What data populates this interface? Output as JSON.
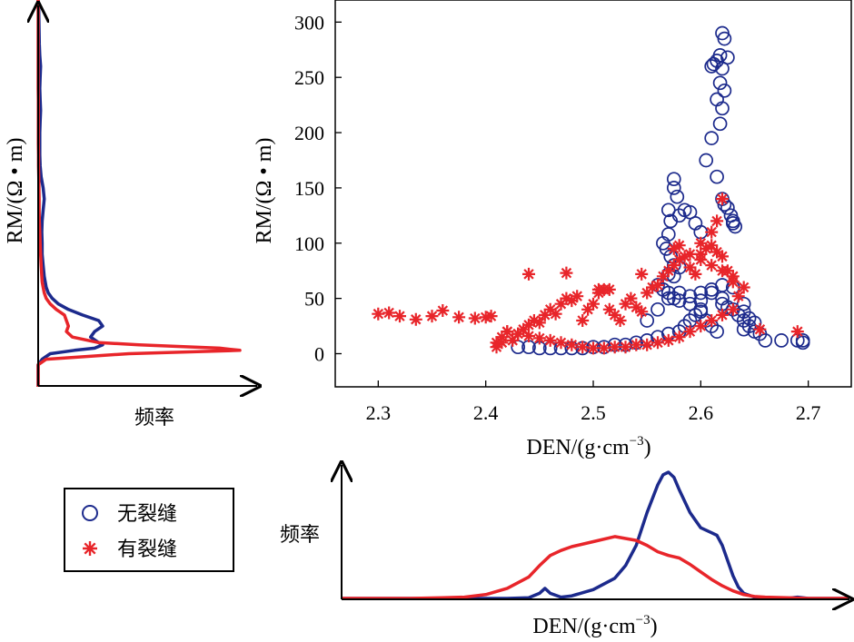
{
  "chart_data": [
    {
      "type": "scatter",
      "xlabel": "DEN/(g·cm",
      "xlabel_sup": "−3",
      "xlabel_close": ")",
      "ylabel": "RM/(Ω • m)",
      "xlim": [
        2.26,
        2.74
      ],
      "ylim": [
        -30,
        320
      ],
      "xticks": [
        "2.3",
        "2.4",
        "2.5",
        "2.6",
        "2.7"
      ],
      "yticks": [
        "0",
        "50",
        "100",
        "150",
        "200",
        "250",
        "300"
      ],
      "grid": false,
      "series": [
        {
          "name": "无裂缝",
          "marker": "circle",
          "color": "#1c2a8c",
          "x": [
            2.62,
            2.622,
            2.618,
            2.615,
            2.61,
            2.612,
            2.62,
            2.625,
            2.618,
            2.615,
            2.622,
            2.62,
            2.618,
            2.61,
            2.605,
            2.615,
            2.62,
            2.622,
            2.625,
            2.628,
            2.63,
            2.63,
            2.632,
            2.575,
            2.575,
            2.578,
            2.57,
            2.572,
            2.58,
            2.585,
            2.59,
            2.595,
            2.6,
            2.57,
            2.565,
            2.568,
            2.572,
            2.575,
            2.58,
            2.575,
            2.57,
            2.56,
            2.565,
            2.57,
            2.575,
            2.58,
            2.59,
            2.6,
            2.61,
            2.62,
            2.63,
            2.64,
            2.64,
            2.64,
            2.645,
            2.65,
            2.655,
            2.66,
            2.675,
            2.69,
            2.695,
            2.695,
            2.65,
            2.64,
            2.645,
            2.635,
            2.63,
            2.625,
            2.62,
            2.62,
            2.61,
            2.6,
            2.6,
            2.595,
            2.59,
            2.585,
            2.58,
            2.57,
            2.56,
            2.55,
            2.54,
            2.53,
            2.52,
            2.51,
            2.5,
            2.49,
            2.48,
            2.47,
            2.46,
            2.45,
            2.44,
            2.43,
            2.55,
            2.56,
            2.57,
            2.58,
            2.59,
            2.6,
            2.605,
            2.61,
            2.615
          ],
          "y": [
            290,
            285,
            270,
            265,
            260,
            262,
            258,
            268,
            245,
            230,
            238,
            222,
            208,
            195,
            175,
            160,
            140,
            135,
            132,
            125,
            120,
            118,
            115,
            158,
            150,
            142,
            130,
            120,
            125,
            130,
            128,
            118,
            110,
            108,
            100,
            95,
            88,
            80,
            78,
            70,
            72,
            62,
            58,
            55,
            50,
            48,
            52,
            55,
            58,
            62,
            60,
            45,
            38,
            30,
            25,
            20,
            18,
            12,
            12,
            12,
            12,
            10,
            28,
            22,
            32,
            35,
            40,
            42,
            45,
            50,
            55,
            48,
            40,
            35,
            30,
            25,
            20,
            18,
            15,
            12,
            10,
            8,
            8,
            6,
            6,
            5,
            5,
            5,
            5,
            5,
            6,
            6,
            30,
            40,
            50,
            55,
            45,
            38,
            30,
            25,
            20
          ]
        },
        {
          "name": "有裂缝",
          "marker": "star",
          "color": "#e8252a",
          "x": [
            2.3,
            2.31,
            2.32,
            2.335,
            2.35,
            2.36,
            2.375,
            2.39,
            2.4,
            2.405,
            2.41,
            2.415,
            2.42,
            2.425,
            2.43,
            2.435,
            2.44,
            2.445,
            2.45,
            2.455,
            2.46,
            2.465,
            2.47,
            2.475,
            2.48,
            2.485,
            2.49,
            2.495,
            2.5,
            2.505,
            2.51,
            2.515,
            2.52,
            2.525,
            2.53,
            2.535,
            2.54,
            2.545,
            2.55,
            2.555,
            2.56,
            2.565,
            2.57,
            2.575,
            2.58,
            2.585,
            2.59,
            2.595,
            2.6,
            2.605,
            2.61,
            2.615,
            2.62,
            2.625,
            2.63,
            2.64,
            2.655,
            2.69,
            2.44,
            2.475,
            2.505,
            2.515,
            2.545,
            2.575,
            2.58,
            2.59,
            2.6,
            2.61,
            2.62,
            2.63,
            2.635,
            2.63,
            2.62,
            2.61,
            2.6,
            2.59,
            2.58,
            2.57,
            2.56,
            2.55,
            2.54,
            2.53,
            2.52,
            2.51,
            2.5,
            2.49,
            2.48,
            2.47,
            2.46,
            2.45,
            2.44,
            2.43,
            2.42,
            2.415,
            2.41,
            2.62,
            2.615,
            2.61,
            2.6
          ],
          "y": [
            36,
            37,
            34,
            31,
            34,
            39,
            33,
            32,
            33,
            34,
            6,
            10,
            20,
            12,
            18,
            22,
            26,
            30,
            28,
            35,
            40,
            36,
            45,
            50,
            48,
            52,
            30,
            40,
            45,
            55,
            58,
            40,
            35,
            30,
            45,
            50,
            42,
            38,
            55,
            60,
            62,
            70,
            75,
            80,
            85,
            88,
            78,
            72,
            90,
            95,
            98,
            92,
            88,
            75,
            70,
            60,
            22,
            20,
            72,
            73,
            58,
            58,
            72,
            95,
            98,
            90,
            85,
            80,
            75,
            65,
            52,
            40,
            35,
            30,
            25,
            20,
            15,
            12,
            10,
            8,
            8,
            6,
            6,
            5,
            5,
            6,
            8,
            10,
            12,
            14,
            16,
            18,
            20,
            15,
            10,
            140,
            120,
            110,
            100
          ]
        }
      ]
    },
    {
      "type": "line",
      "role": "RM frequency distribution (rotated, left)",
      "xlabel": "频率",
      "ylim": [
        -30,
        320
      ],
      "series": [
        {
          "name": "无裂缝",
          "color": "#1c2a8c",
          "y": [
            -30,
            -10,
            -5,
            0,
            3,
            5,
            8,
            10,
            15,
            20,
            25,
            30,
            35,
            40,
            45,
            50,
            55,
            60,
            65,
            70,
            80,
            90,
            100,
            110,
            120,
            130,
            140,
            150,
            160,
            170,
            180,
            190,
            200,
            210,
            220,
            230,
            240,
            250,
            260,
            270,
            280,
            290,
            300,
            310,
            320
          ],
          "density": [
            0.0,
            0.0,
            0.02,
            0.06,
            0.18,
            0.28,
            0.32,
            0.3,
            0.26,
            0.28,
            0.32,
            0.3,
            0.22,
            0.15,
            0.1,
            0.07,
            0.05,
            0.04,
            0.035,
            0.03,
            0.025,
            0.02,
            0.02,
            0.018,
            0.02,
            0.025,
            0.03,
            0.025,
            0.015,
            0.01,
            0.008,
            0.008,
            0.008,
            0.01,
            0.012,
            0.01,
            0.008,
            0.01,
            0.012,
            0.008,
            0.006,
            0.005,
            0.004,
            0.003,
            0.0
          ]
        },
        {
          "name": "有裂缝",
          "color": "#e8252a",
          "y": [
            -30,
            -10,
            -5,
            0,
            3,
            5,
            8,
            10,
            15,
            20,
            25,
            30,
            35,
            40,
            45,
            50,
            55,
            60,
            65,
            70,
            80,
            90,
            100,
            110,
            120,
            130,
            140,
            150,
            160,
            170,
            180,
            190,
            200,
            210,
            220,
            230,
            240,
            250,
            260,
            270,
            280,
            290,
            300,
            310,
            320
          ],
          "density": [
            0.0,
            0.0,
            0.04,
            0.45,
            1.0,
            0.9,
            0.5,
            0.3,
            0.17,
            0.14,
            0.15,
            0.14,
            0.13,
            0.09,
            0.06,
            0.04,
            0.03,
            0.025,
            0.02,
            0.018,
            0.015,
            0.012,
            0.01,
            0.008,
            0.006,
            0.005,
            0.005,
            0.004,
            0.003,
            0.002,
            0.002,
            0.001,
            0.001,
            0.001,
            0.001,
            0.001,
            0.0,
            0.0,
            0.0,
            0.0,
            0.0,
            0.0,
            0.0,
            0.0,
            0.0
          ]
        }
      ]
    },
    {
      "type": "line",
      "role": "DEN frequency distribution (bottom)",
      "ylabel": "频率",
      "xlabel": "DEN/(g·cm",
      "xlabel_sup": "−3",
      "xlabel_close": ")",
      "xlim": [
        2.26,
        2.74
      ],
      "series": [
        {
          "name": "无裂缝",
          "color": "#1c2a8c",
          "x": [
            2.26,
            2.38,
            2.42,
            2.44,
            2.45,
            2.455,
            2.46,
            2.47,
            2.48,
            2.5,
            2.52,
            2.53,
            2.54,
            2.55,
            2.56,
            2.565,
            2.57,
            2.575,
            2.58,
            2.59,
            2.6,
            2.61,
            2.615,
            2.62,
            2.625,
            2.63,
            2.635,
            2.64,
            2.65,
            2.66,
            2.68,
            2.69,
            2.7,
            2.74
          ],
          "density": [
            0.0,
            0.0,
            0.0,
            0.005,
            0.04,
            0.08,
            0.04,
            0.01,
            0.02,
            0.07,
            0.16,
            0.26,
            0.42,
            0.68,
            0.9,
            0.98,
            1.0,
            0.96,
            0.86,
            0.68,
            0.56,
            0.52,
            0.5,
            0.42,
            0.3,
            0.18,
            0.09,
            0.04,
            0.01,
            0.0,
            0.0,
            0.01,
            0.0,
            0.0
          ]
        },
        {
          "name": "有裂缝",
          "color": "#e8252a",
          "x": [
            2.26,
            2.33,
            2.36,
            2.38,
            2.4,
            2.42,
            2.44,
            2.45,
            2.46,
            2.47,
            2.48,
            2.5,
            2.52,
            2.54,
            2.55,
            2.56,
            2.57,
            2.58,
            2.59,
            2.6,
            2.61,
            2.62,
            2.63,
            2.64,
            2.65,
            2.66,
            2.68,
            2.7,
            2.74
          ],
          "density": [
            0.0,
            0.0,
            0.005,
            0.01,
            0.03,
            0.08,
            0.17,
            0.26,
            0.34,
            0.38,
            0.41,
            0.45,
            0.49,
            0.46,
            0.42,
            0.37,
            0.34,
            0.32,
            0.27,
            0.21,
            0.15,
            0.1,
            0.06,
            0.03,
            0.015,
            0.01,
            0.005,
            0.0,
            0.0
          ]
        }
      ]
    }
  ],
  "legend": {
    "items": [
      {
        "label": "无裂缝",
        "marker": "circle",
        "color": "#1c2a8c"
      },
      {
        "label": "有裂缝",
        "marker": "star",
        "color": "#e8252a"
      }
    ]
  },
  "left_xlabel": "频率",
  "bottom_ylabel": "频率"
}
